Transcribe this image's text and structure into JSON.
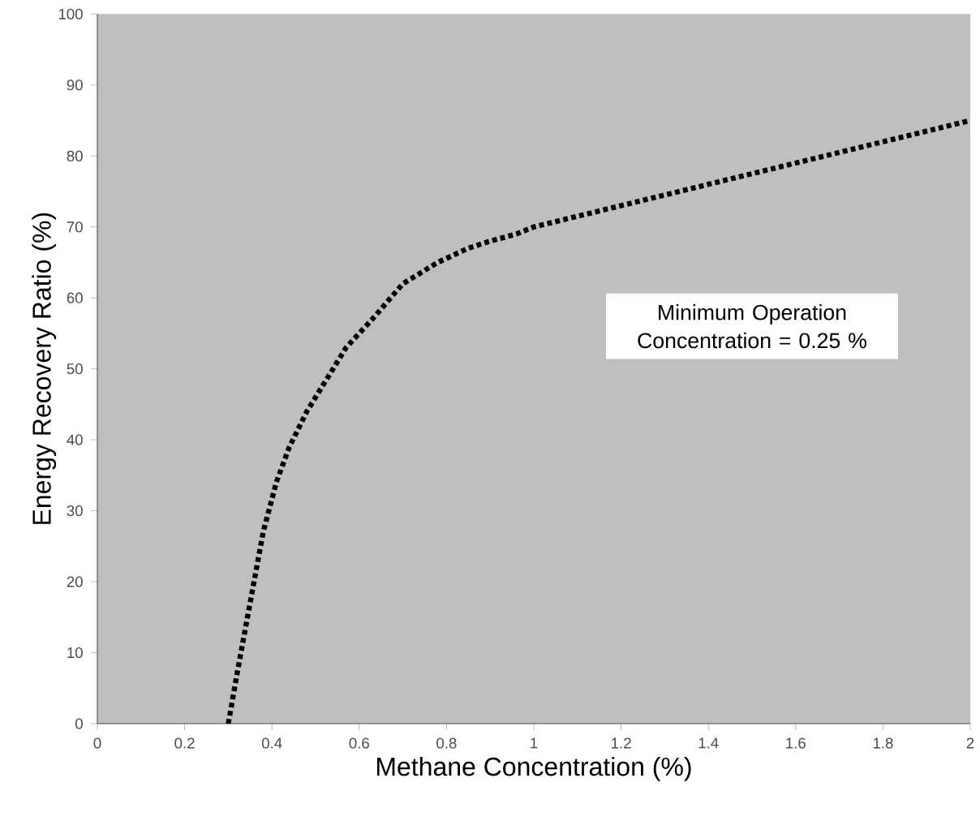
{
  "chart_data": {
    "type": "line",
    "xlabel": "Methane Concentration (%)",
    "ylabel": "Energy Recovery Ratio (%)",
    "annotations": [
      "Minimum Operation Concentration = 0.25 %"
    ],
    "series": [
      {
        "color": "#000000",
        "x": [
          0.3,
          0.32,
          0.35,
          0.38,
          0.41,
          0.44,
          0.48,
          0.52,
          0.57,
          0.63,
          0.7,
          0.78,
          0.85,
          0.9,
          0.96,
          1.0,
          1.2,
          1.4,
          1.6,
          1.8,
          2.0
        ],
        "values": [
          0,
          7,
          17,
          27,
          34,
          39,
          44,
          48,
          53,
          57,
          62,
          65,
          67,
          68,
          69,
          70,
          73,
          76,
          79,
          82,
          85
        ]
      }
    ],
    "xlim": [
      0,
      2
    ],
    "ylim": [
      0,
      100
    ],
    "xticks": [
      0,
      0.2,
      0.4,
      0.6,
      0.8,
      1,
      1.2,
      1.4,
      1.6,
      1.8,
      2
    ],
    "yticks": [
      0,
      10,
      20,
      30,
      40,
      50,
      60,
      70,
      80,
      90,
      100
    ],
    "marker": "none",
    "line_style": "dotted"
  }
}
